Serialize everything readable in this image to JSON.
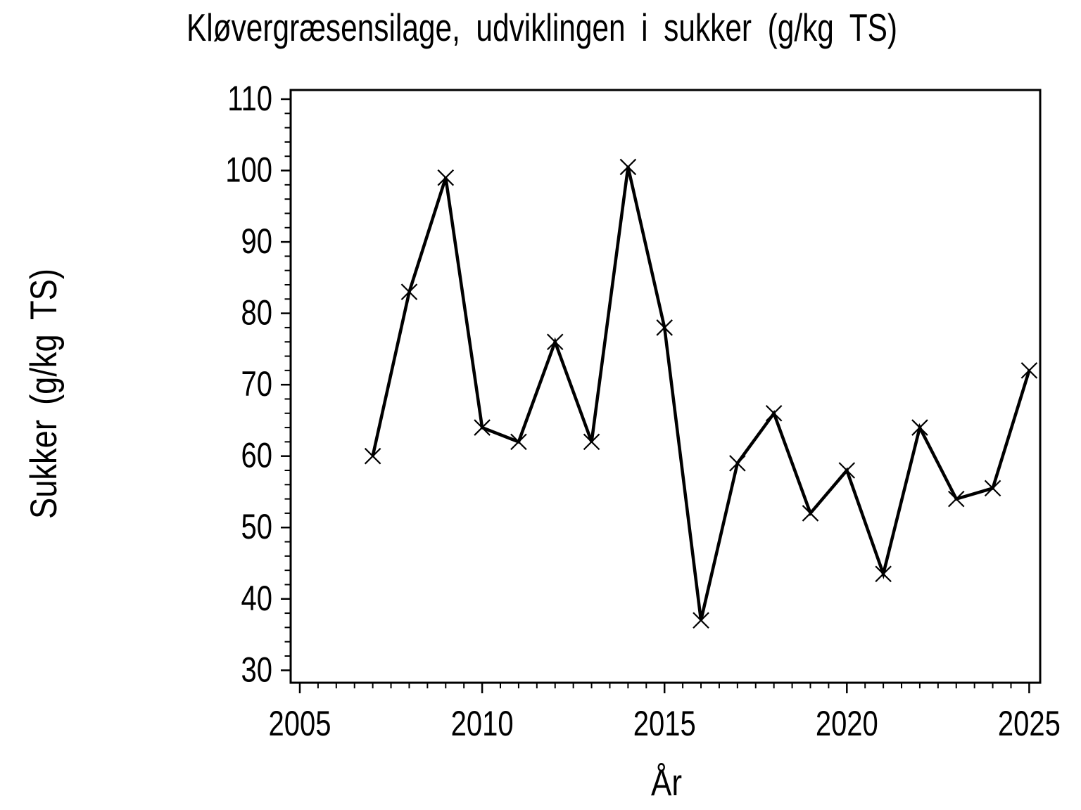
{
  "chart_data": {
    "type": "line",
    "title": "Kløvergræsensilage, udviklingen i sukker (g/kg TS)",
    "xlabel": "År",
    "ylabel": "Sukker (g/kg TS)",
    "x": [
      2007,
      2008,
      2009,
      2010,
      2011,
      2012,
      2013,
      2014,
      2015,
      2016,
      2017,
      2018,
      2019,
      2020,
      2021,
      2022,
      2023,
      2024,
      2025
    ],
    "values": [
      60,
      83,
      99,
      64,
      62,
      76,
      62,
      100.5,
      78,
      37,
      59,
      66,
      52,
      58,
      43.5,
      64,
      54,
      55.5,
      72
    ],
    "series_name": "Sukker",
    "marker": "x",
    "line_color": "#000000",
    "background_color": "#ffffff",
    "grid": false,
    "legend": false,
    "x_axis_range": [
      2005,
      2025
    ],
    "y_axis_range": [
      30,
      110
    ],
    "x_ticks_major": [
      2005,
      2010,
      2015,
      2020,
      2025
    ],
    "x_minor_step": 0.5,
    "y_ticks_major": [
      30,
      40,
      50,
      60,
      70,
      80,
      90,
      100,
      110
    ],
    "y_minor_step": 2
  }
}
